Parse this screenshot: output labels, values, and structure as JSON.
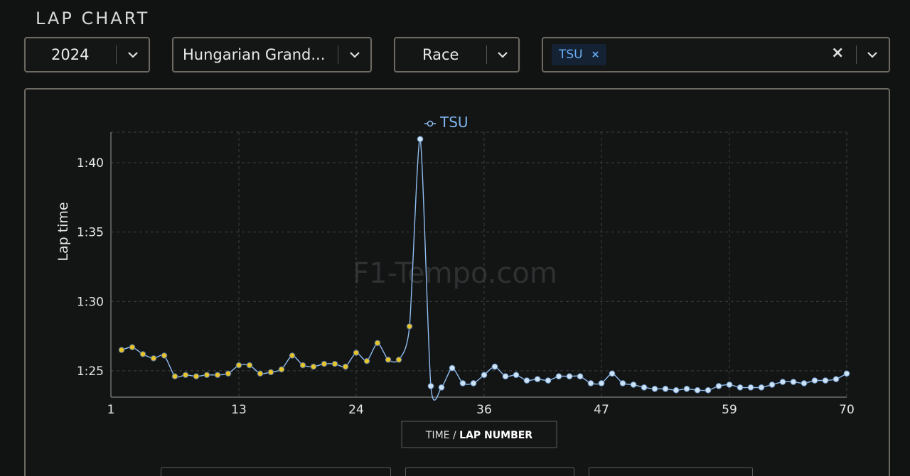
{
  "page": {
    "title": "LAP CHART"
  },
  "filters": {
    "year": {
      "value": "2024"
    },
    "event": {
      "value": "Hungarian Grand..."
    },
    "session": {
      "value": "Race"
    },
    "drivers": {
      "selected": [
        {
          "label": "TSU",
          "remove": "×"
        }
      ],
      "clear": "×"
    }
  },
  "watermark": "F1-Tempo.com",
  "axis_toggle": {
    "prefix": "TIME / ",
    "active": "LAP NUMBER"
  },
  "colors": {
    "series": "#8fbdf0",
    "marker_yellow": "#e8c32a",
    "marker_light": "#cfe3f7",
    "accent": "#6aaef5"
  },
  "chart_data": {
    "type": "line",
    "xlabel": "",
    "ylabel": "Lap time",
    "x_ticks": [
      1,
      13,
      24,
      36,
      47,
      59,
      70
    ],
    "y_ticks": [
      {
        "value": 85,
        "label": "1:25"
      },
      {
        "value": 90,
        "label": "1:30"
      },
      {
        "value": 95,
        "label": "1:35"
      },
      {
        "value": 100,
        "label": "1:40"
      }
    ],
    "xlim": [
      1,
      70
    ],
    "ylim": [
      83.1,
      102.2
    ],
    "grid": true,
    "legend": "top",
    "series": [
      {
        "name": "TSU",
        "x": [
          2,
          3,
          4,
          5,
          6,
          7,
          8,
          9,
          10,
          11,
          12,
          13,
          14,
          15,
          16,
          17,
          18,
          19,
          20,
          21,
          22,
          23,
          24,
          25,
          26,
          27,
          28,
          29,
          30,
          31,
          32,
          33,
          34,
          35,
          36,
          37,
          38,
          39,
          40,
          41,
          42,
          43,
          44,
          45,
          46,
          47,
          48,
          49,
          50,
          51,
          52,
          53,
          54,
          55,
          56,
          57,
          58,
          59,
          60,
          61,
          62,
          63,
          64,
          65,
          66,
          67,
          68,
          69,
          70
        ],
        "values": [
          86.5,
          86.7,
          86.2,
          85.9,
          86.1,
          84.6,
          84.7,
          84.6,
          84.7,
          84.7,
          84.8,
          85.4,
          85.4,
          84.8,
          84.9,
          85.1,
          86.1,
          85.4,
          85.3,
          85.5,
          85.5,
          85.3,
          86.3,
          85.7,
          87.0,
          85.8,
          85.8,
          88.2,
          101.7,
          83.9,
          83.8,
          85.2,
          84.1,
          84.1,
          84.7,
          85.3,
          84.6,
          84.7,
          84.3,
          84.4,
          84.3,
          84.6,
          84.6,
          84.6,
          84.1,
          84.1,
          84.8,
          84.1,
          84.0,
          83.8,
          83.7,
          83.7,
          83.6,
          83.7,
          83.6,
          83.6,
          83.9,
          84.0,
          83.8,
          83.8,
          83.8,
          84.0,
          84.2,
          84.2,
          84.1,
          84.3,
          84.3,
          84.4,
          84.8
        ],
        "marker_kind": [
          "y",
          "y",
          "y",
          "y",
          "y",
          "y",
          "y",
          "y",
          "y",
          "y",
          "y",
          "y",
          "y",
          "y",
          "y",
          "y",
          "y",
          "y",
          "y",
          "y",
          "y",
          "y",
          "y",
          "y",
          "y",
          "y",
          "y",
          "y",
          "l",
          "l",
          "l",
          "l",
          "l",
          "l",
          "l",
          "l",
          "l",
          "l",
          "l",
          "l",
          "l",
          "l",
          "l",
          "l",
          "l",
          "l",
          "l",
          "l",
          "l",
          "l",
          "l",
          "l",
          "l",
          "l",
          "l",
          "l",
          "l",
          "l",
          "l",
          "l",
          "l",
          "l",
          "l",
          "l",
          "l",
          "l",
          "l",
          "l",
          "l"
        ]
      }
    ]
  }
}
